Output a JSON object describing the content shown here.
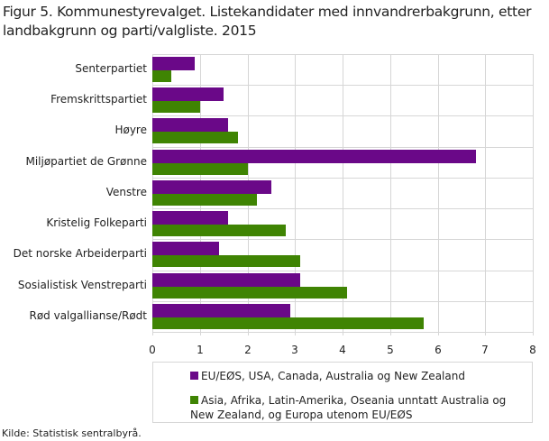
{
  "title": "Figur 5. Kommunestyrevalget. Listekandidater med innvandrerbakgrunn, etter landbakgrunn og parti/valgliste. 2015",
  "source": "Kilde: Statistisk sentralbyrå.",
  "colors": {
    "series1": "#6a0888",
    "series2": "#3f8403",
    "grid": "#d6d6d6"
  },
  "legend": {
    "items": [
      {
        "label": "EU/EØS, USA, Canada, Australia og New Zealand",
        "color": "#6a0888"
      },
      {
        "label": "Asia, Afrika, Latin-Amerika, Oseania unntatt Australia og New Zealand, og Europa utenom EU/EØS",
        "color": "#3f8403"
      }
    ]
  },
  "chart_data": {
    "type": "bar",
    "orientation": "horizontal",
    "title": "Figur 5. Kommunestyrevalget. Listekandidater med innvandrerbakgrunn, etter landbakgrunn og parti/valgliste. 2015",
    "xlabel": "",
    "ylabel": "",
    "xlim": [
      0,
      8
    ],
    "xticks": [
      0,
      1,
      2,
      3,
      4,
      5,
      6,
      7,
      8
    ],
    "grid": true,
    "legend_position": "bottom",
    "categories": [
      "Senterpartiet",
      "Fremskrittspartiet",
      "Høyre",
      "Miljøpartiet de Grønne",
      "Venstre",
      "Kristelig Folkeparti",
      "Det norske Arbeiderparti",
      "Sosialistisk Venstreparti",
      "Rød valgallianse/Rødt"
    ],
    "series": [
      {
        "name": "EU/EØS, USA, Canada, Australia og New Zealand",
        "color": "#6a0888",
        "values": [
          0.9,
          1.5,
          1.6,
          6.8,
          2.5,
          1.6,
          1.4,
          3.1,
          2.9
        ]
      },
      {
        "name": "Asia, Afrika, Latin-Amerika, Oseania unntatt Australia og New Zealand, og Europa utenom EU/EØS",
        "color": "#3f8403",
        "values": [
          0.4,
          1.0,
          1.8,
          2.0,
          2.2,
          2.8,
          3.1,
          4.1,
          5.7
        ]
      }
    ],
    "source": "Kilde: Statistisk sentralbyrå."
  }
}
